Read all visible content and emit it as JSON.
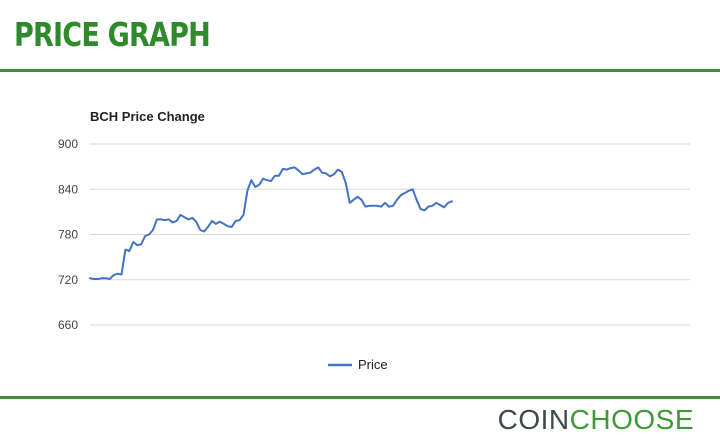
{
  "header": {
    "title": "PRICE GRAPH"
  },
  "brand": {
    "coin": "COIN",
    "choose": "CHOOSE"
  },
  "colors": {
    "title": "#2e8a2b",
    "rule": "#3f8f3a",
    "line": "#4472c4",
    "grid": "#dadada",
    "axis_text": "#444444",
    "brand_dark": "#3c4c42",
    "brand_accent": "#3f9a36"
  },
  "chart_data": {
    "type": "line",
    "title": "BCH Price Change",
    "xlabel": "",
    "ylabel": "",
    "ylim": [
      660,
      900
    ],
    "yticks": [
      900,
      840,
      780,
      720,
      660
    ],
    "grid": true,
    "legend_position": "bottom",
    "series": [
      {
        "name": "Price",
        "values": [
          722,
          721,
          721,
          722,
          722,
          721,
          726,
          728,
          727,
          760,
          758,
          770,
          766,
          767,
          778,
          780,
          786,
          800,
          800,
          799,
          800,
          796,
          798,
          806,
          803,
          800,
          802,
          797,
          786,
          784,
          790,
          798,
          794,
          797,
          794,
          791,
          790,
          798,
          799,
          806,
          838,
          852,
          843,
          846,
          854,
          852,
          851,
          858,
          858,
          867,
          866,
          868,
          869,
          865,
          860,
          861,
          862,
          866,
          869,
          862,
          861,
          857,
          860,
          866,
          863,
          848,
          822,
          826,
          830,
          826,
          817,
          818,
          818,
          818,
          817,
          822,
          817,
          818,
          826,
          832,
          835,
          838,
          840,
          826,
          814,
          812,
          817,
          818,
          822,
          819,
          816,
          822,
          824
        ]
      }
    ]
  }
}
